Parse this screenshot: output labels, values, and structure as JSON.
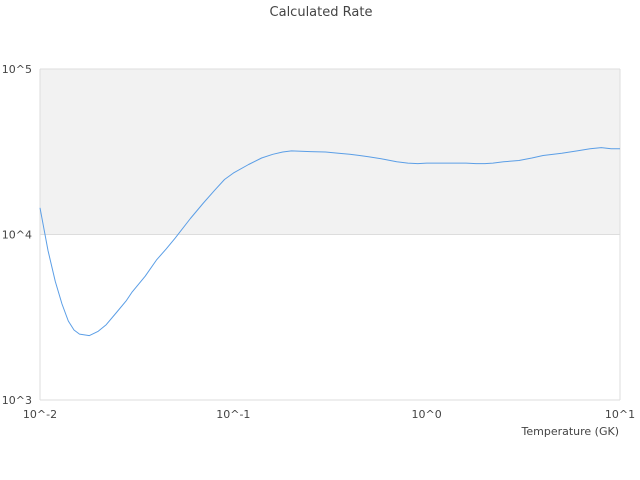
{
  "chart_data": {
    "type": "line",
    "title": "Calculated Rate",
    "xlabel": "Temperature (GK)",
    "ylabel": "",
    "xscale": "log",
    "yscale": "log",
    "xlim": [
      0.01,
      10
    ],
    "ylim": [
      1000,
      100000
    ],
    "x_tick_labels": [
      "10^-2",
      "10^-1",
      "10^0",
      "10^1"
    ],
    "y_tick_labels": [
      "10^3",
      "10^4",
      "10^5"
    ],
    "grid": "horizontal",
    "legend": "none",
    "colors": {
      "line": "#5b9ee6",
      "band": "#f2f2f2",
      "grid": "#dddddd",
      "text": "#444444"
    },
    "series": [
      {
        "x": [
          0.01,
          0.011,
          0.012,
          0.013,
          0.014,
          0.015,
          0.016,
          0.018,
          0.02,
          0.022,
          0.025,
          0.028,
          0.03,
          0.035,
          0.04,
          0.045,
          0.05,
          0.06,
          0.07,
          0.08,
          0.09,
          0.1,
          0.12,
          0.14,
          0.16,
          0.18,
          0.2,
          0.25,
          0.3,
          0.35,
          0.4,
          0.45,
          0.5,
          0.6,
          0.7,
          0.8,
          0.9,
          1.0,
          1.2,
          1.4,
          1.6,
          1.8,
          2.0,
          2.2,
          2.5,
          3.0,
          3.5,
          4.0,
          5.0,
          6.0,
          7.0,
          8.0,
          9.0,
          10.0
        ],
        "y": [
          14500,
          8000,
          5200,
          3800,
          3000,
          2650,
          2500,
          2450,
          2600,
          2850,
          3400,
          4000,
          4500,
          5600,
          7000,
          8200,
          9500,
          12500,
          15500,
          18500,
          21500,
          23500,
          26500,
          29000,
          30500,
          31500,
          32000,
          31700,
          31500,
          31000,
          30500,
          30000,
          29500,
          28500,
          27500,
          27000,
          26800,
          27000,
          27000,
          27000,
          27000,
          26800,
          26800,
          27000,
          27500,
          28000,
          29000,
          30000,
          31000,
          32000,
          33000,
          33500,
          33000,
          33000
        ]
      }
    ]
  }
}
